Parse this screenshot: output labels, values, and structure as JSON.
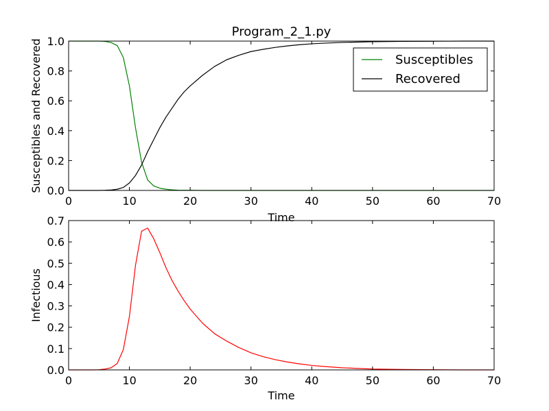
{
  "chart_data": [
    {
      "type": "line",
      "title": "Program_2_1.py",
      "xlabel": "Time",
      "ylabel": "Susceptibles and Recovered",
      "xlim": [
        0,
        70
      ],
      "ylim": [
        0,
        1.0
      ],
      "xticks": [
        "0",
        "10",
        "20",
        "30",
        "40",
        "50",
        "60",
        "70"
      ],
      "yticks": [
        "0.0",
        "0.2",
        "0.4",
        "0.6",
        "0.8",
        "1.0"
      ],
      "grid": false,
      "legend": "top-right",
      "series": [
        {
          "name": "Susceptibles",
          "color": "#008000",
          "x": [
            0,
            1,
            2,
            3,
            4,
            5,
            6,
            7,
            8,
            9,
            10,
            11,
            12,
            13,
            14,
            15,
            16,
            17,
            18,
            19,
            20,
            22,
            25,
            30,
            40,
            50,
            60,
            70
          ],
          "y": [
            1.0,
            1.0,
            1.0,
            1.0,
            1.0,
            1.0,
            0.998,
            0.99,
            0.97,
            0.89,
            0.7,
            0.42,
            0.19,
            0.07,
            0.03,
            0.015,
            0.008,
            0.004,
            0.002,
            0.001,
            0.001,
            0.0,
            0.0,
            0.0,
            0.0,
            0.0,
            0.0,
            0.0
          ]
        },
        {
          "name": "Recovered",
          "color": "#000000",
          "x": [
            0,
            1,
            2,
            3,
            4,
            5,
            6,
            7,
            8,
            9,
            10,
            11,
            12,
            13,
            14,
            15,
            16,
            17,
            18,
            19,
            20,
            22,
            24,
            26,
            28,
            30,
            32,
            34,
            36,
            38,
            40,
            42,
            45,
            50,
            55,
            60,
            65,
            70
          ],
          "y": [
            0.0,
            0.0,
            0.0,
            0.0,
            0.0,
            0.0,
            0.001,
            0.003,
            0.008,
            0.02,
            0.05,
            0.1,
            0.17,
            0.26,
            0.34,
            0.42,
            0.49,
            0.55,
            0.61,
            0.66,
            0.7,
            0.77,
            0.83,
            0.875,
            0.905,
            0.93,
            0.945,
            0.958,
            0.968,
            0.976,
            0.982,
            0.986,
            0.991,
            0.996,
            0.998,
            0.999,
            1.0,
            1.0
          ]
        }
      ]
    },
    {
      "type": "line",
      "title": "",
      "xlabel": "Time",
      "ylabel": "Infectious",
      "xlim": [
        0,
        70
      ],
      "ylim": [
        0,
        0.7
      ],
      "xticks": [
        "0",
        "10",
        "20",
        "30",
        "40",
        "50",
        "60",
        "70"
      ],
      "yticks": [
        "0.0",
        "0.1",
        "0.2",
        "0.3",
        "0.4",
        "0.5",
        "0.6",
        "0.7"
      ],
      "grid": false,
      "series": [
        {
          "color": "#ff0000",
          "x": [
            0,
            1,
            2,
            3,
            4,
            5,
            6,
            7,
            8,
            9,
            10,
            11,
            12,
            13,
            14,
            15,
            16,
            17,
            18,
            19,
            20,
            22,
            24,
            26,
            28,
            30,
            32,
            34,
            36,
            38,
            40,
            42,
            45,
            50,
            55,
            60,
            65,
            70
          ],
          "y": [
            0.0,
            0.0,
            0.0,
            0.0,
            0.0,
            0.001,
            0.004,
            0.01,
            0.03,
            0.095,
            0.25,
            0.49,
            0.65,
            0.665,
            0.615,
            0.55,
            0.48,
            0.42,
            0.37,
            0.325,
            0.285,
            0.22,
            0.17,
            0.135,
            0.105,
            0.08,
            0.062,
            0.048,
            0.037,
            0.028,
            0.021,
            0.016,
            0.01,
            0.004,
            0.002,
            0.001,
            0.0,
            0.0
          ]
        }
      ]
    }
  ]
}
